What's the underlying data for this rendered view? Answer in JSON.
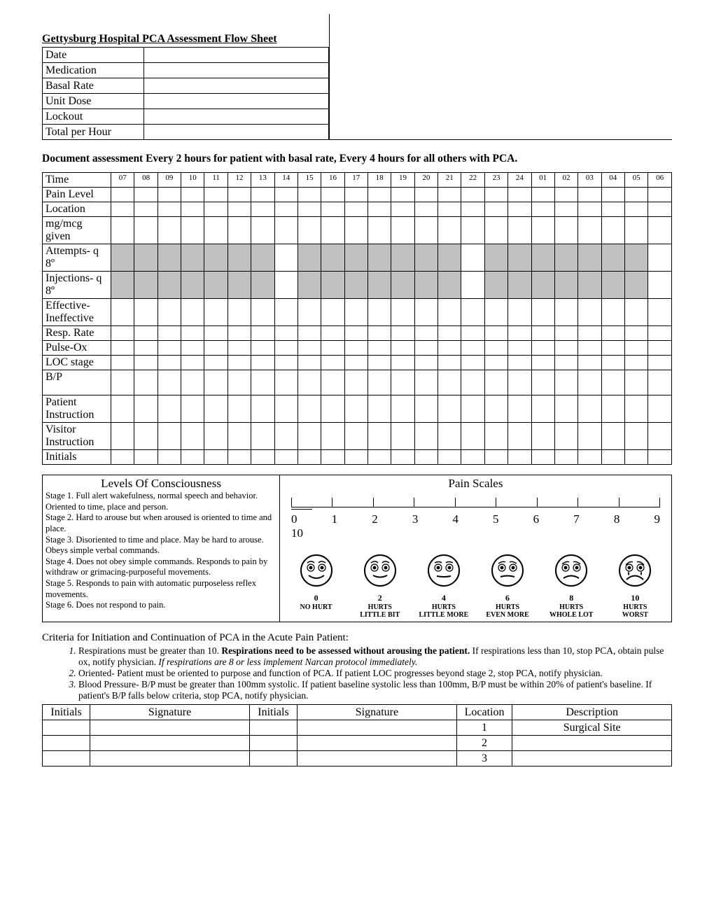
{
  "header": {
    "title": "Gettysburg Hospital PCA Assessment Flow Sheet",
    "info_rows": [
      "Date",
      "Medication",
      "Basal Rate",
      "Unit Dose",
      "Lockout",
      "Total per Hour"
    ]
  },
  "instruction": "Document assessment Every 2 hours for patient with basal rate, Every 4 hours for all others with PCA.",
  "assess": {
    "hours": [
      "07",
      "08",
      "09",
      "10",
      "11",
      "12",
      "13",
      "14",
      "15",
      "16",
      "17",
      "18",
      "19",
      "20",
      "21",
      "22",
      "23",
      "24",
      "01",
      "02",
      "03",
      "04",
      "05",
      "06"
    ],
    "time_label": "Time",
    "rows": [
      {
        "label": "Pain Level",
        "shaded": []
      },
      {
        "label": "Location",
        "shaded": []
      },
      {
        "label": "mg/mcg given",
        "shaded": []
      },
      {
        "label": "Attempts- q 8º",
        "shaded": [
          0,
          1,
          2,
          3,
          4,
          5,
          6,
          8,
          9,
          10,
          11,
          12,
          13,
          14,
          16,
          17,
          18,
          19,
          20,
          21,
          22
        ]
      },
      {
        "label": "Injections- q 8º",
        "shaded": [
          0,
          1,
          2,
          3,
          4,
          5,
          6,
          8,
          9,
          10,
          11,
          12,
          13,
          14,
          16,
          17,
          18,
          19,
          20,
          21,
          22
        ]
      },
      {
        "label": "Effective- Ineffective",
        "shaded": []
      },
      {
        "label": "Resp. Rate",
        "shaded": []
      },
      {
        "label": "Pulse-Ox",
        "shaded": []
      },
      {
        "label": "LOC stage",
        "shaded": []
      },
      {
        "label": "B/P",
        "shaded": [],
        "tall": true
      },
      {
        "label": "Patient Instruction",
        "shaded": []
      },
      {
        "label": "Visitor Instruction",
        "shaded": []
      },
      {
        "label": "Initials",
        "shaded": []
      }
    ]
  },
  "loc": {
    "title": "Levels Of Consciousness",
    "stages": [
      "Stage 1.  Full alert wakefulness, normal speech and behavior.  Oriented to time, place and person.",
      "Stage 2.  Hard to arouse but when aroused is oriented to time and place.",
      "Stage 3.  Disoriented to time and place.  May be hard to arouse.  Obeys simple verbal commands.",
      "Stage 4.  Does not obey simple commands. Responds to pain by withdraw or grimacing-purposeful movements.",
      "Stage 5.  Responds to pain with automatic purposeless reflex movements.",
      "Stage 6.  Does not respond to pain."
    ]
  },
  "pain": {
    "title": "Pain Scales",
    "numeric": [
      "0",
      "1",
      "2",
      "3",
      "4",
      "5",
      "6",
      "7",
      "8",
      "9"
    ],
    "trailing": "10",
    "faces": [
      {
        "n": "0",
        "l1": "NO HURT",
        "l2": ""
      },
      {
        "n": "2",
        "l1": "HURTS",
        "l2": "LITTLE BIT"
      },
      {
        "n": "4",
        "l1": "HURTS",
        "l2": "LITTLE MORE"
      },
      {
        "n": "6",
        "l1": "HURTS",
        "l2": "EVEN MORE"
      },
      {
        "n": "8",
        "l1": "HURTS",
        "l2": "WHOLE LOT"
      },
      {
        "n": "10",
        "l1": "HURTS",
        "l2": "WORST"
      }
    ]
  },
  "criteria": {
    "heading": "Criteria for Initiation and Continuation of PCA in the Acute Pain Patient:",
    "items": [
      {
        "pre": "Respirations must be greater than 10.  ",
        "bold": "Respirations need to be assessed without arousing the patient.",
        "post": "  If respirations less than 10, stop PCA, obtain pulse ox, notify physician. ",
        "italic": "If respirations are 8 or less implement Narcan protocol immediately."
      },
      {
        "pre": "Oriented- Patient must be oriented to purpose and function of PCA.  If patient LOC progresses beyond stage 2, stop PCA, notify physician.",
        "bold": "",
        "post": "",
        "italic": ""
      },
      {
        "pre": "Blood Pressure- B/P must be greater than 100mm systolic.  If patient baseline systolic less than 100mm, B/P must be within 20% of patient's baseline.  If patient's B/P falls below criteria, stop PCA, notify physician.",
        "bold": "",
        "post": "",
        "italic": ""
      }
    ]
  },
  "sign": {
    "headers": [
      "Initials",
      "Signature",
      "Initials",
      "Signature",
      "Location",
      "Description"
    ],
    "rows": [
      {
        "loc": "1",
        "desc": "Surgical Site"
      },
      {
        "loc": "2",
        "desc": ""
      },
      {
        "loc": "3",
        "desc": ""
      }
    ]
  }
}
